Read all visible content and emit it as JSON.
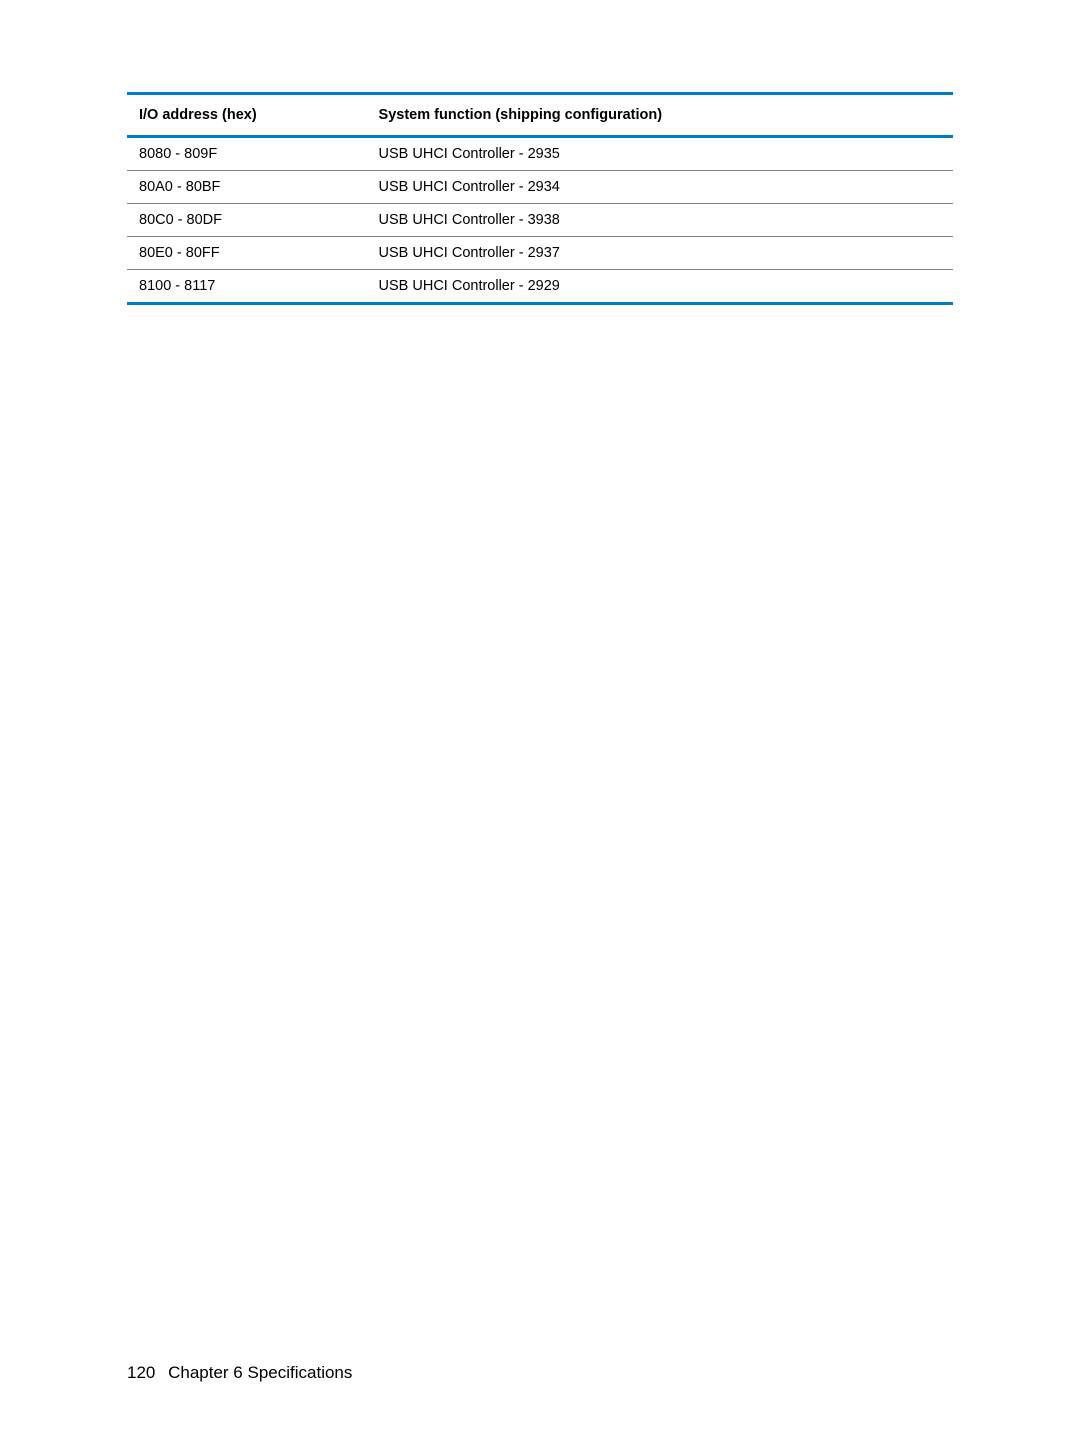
{
  "table": {
    "type": "table",
    "header_border_color": "#007cc4",
    "row_border_color": "#808080",
    "background_color": "#ffffff",
    "text_color": "#000000",
    "header_fontsize": 14.5,
    "cell_fontsize": 14.5,
    "columns": [
      {
        "label": "I/O address (hex)",
        "width_pct": 29
      },
      {
        "label": "System function (shipping configuration)",
        "width_pct": 71
      }
    ],
    "rows": [
      [
        "8080 - 809F",
        "USB UHCI Controller - 2935"
      ],
      [
        "80A0 - 80BF",
        "USB UHCI Controller - 2934"
      ],
      [
        "80C0 - 80DF",
        "USB UHCI Controller - 3938"
      ],
      [
        "80E0 - 80FF",
        "USB UHCI Controller - 2937"
      ],
      [
        "8100 - 8117",
        "USB UHCI Controller - 2929"
      ]
    ]
  },
  "footer": {
    "page_number": "120",
    "chapter_label": "Chapter 6   Specifications"
  }
}
